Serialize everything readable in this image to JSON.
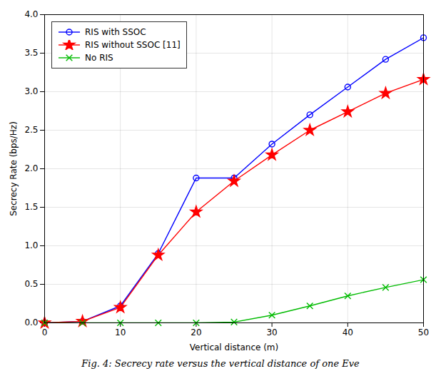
{
  "chart_data": {
    "type": "line",
    "xlabel": "Vertical distance (m)",
    "ylabel": "Secrecy Rate (bps/Hz)",
    "caption": "Fig. 4: Secrecy rate versus the vertical distance of one Eve",
    "x": [
      0,
      5,
      10,
      15,
      20,
      25,
      30,
      35,
      40,
      45,
      50
    ],
    "series": [
      {
        "name": "RIS with SSOC",
        "color": "#0000ff",
        "marker": "circle",
        "values": [
          0.0,
          0.02,
          0.22,
          0.9,
          1.88,
          1.88,
          2.32,
          2.7,
          3.06,
          3.42,
          3.7
        ]
      },
      {
        "name": "RIS without SSOC [11]",
        "color": "#ff0000",
        "marker": "star",
        "values": [
          0.0,
          0.02,
          0.2,
          0.88,
          1.44,
          1.84,
          2.18,
          2.5,
          2.74,
          2.98,
          3.16
        ]
      },
      {
        "name": "No RIS",
        "color": "#00bb00",
        "marker": "x",
        "values": [
          0.0,
          0.0,
          0.0,
          0.0,
          0.0,
          0.01,
          0.1,
          0.22,
          0.35,
          0.46,
          0.56
        ]
      }
    ],
    "xlim": [
      0,
      50
    ],
    "ylim": [
      0,
      4
    ],
    "xticks": [
      0,
      10,
      20,
      30,
      40,
      50
    ],
    "yticks": [
      {
        "value": 0,
        "label": "0.0"
      },
      0.5,
      {
        "value": 1.0,
        "label": "1.0"
      },
      1.5,
      {
        "value": 2.0,
        "label": "2.0"
      },
      2.5,
      {
        "value": 3.0,
        "label": "3.0"
      },
      3.5,
      {
        "value": 4.0,
        "label": "4.0"
      }
    ],
    "grid": true,
    "legend": "upper left"
  }
}
